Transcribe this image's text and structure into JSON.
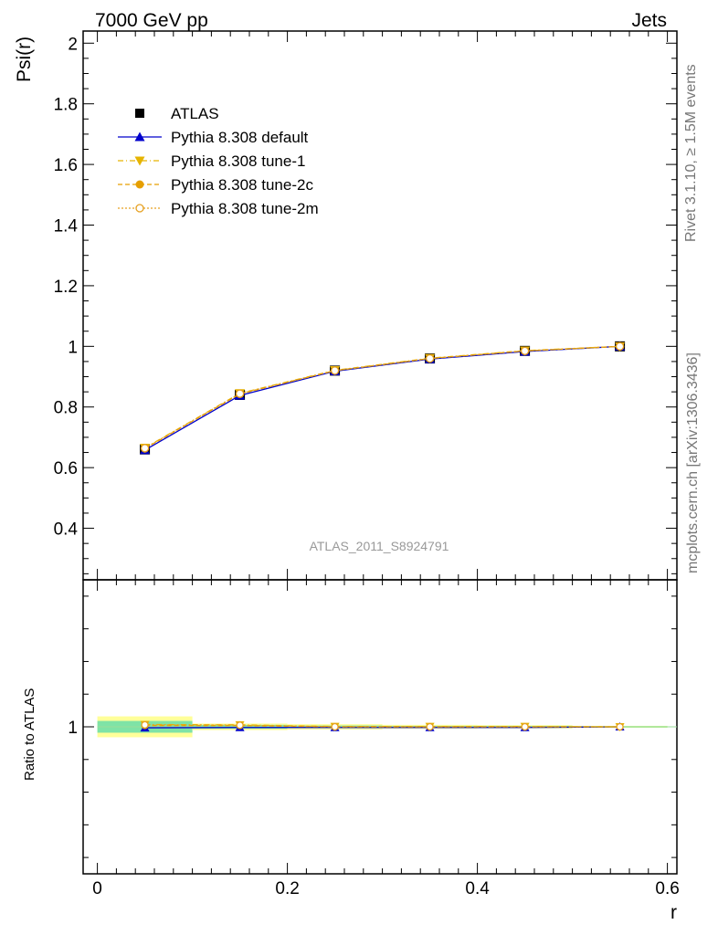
{
  "header": {
    "left": "7000 GeV pp",
    "right": "Jets"
  },
  "side_labels": {
    "rivet": "Rivet 3.1.10, ≥ 1.5M events",
    "mcplots": "mcplots.cern.ch [arXiv:1306.3436]"
  },
  "watermark": "ATLAS_2011_S8924791",
  "colors": {
    "atlas": "#000000",
    "default": "#0000cc",
    "tune1": "#e6b400",
    "tune2c": "#e69f00",
    "tune2m": "#e6a020"
  },
  "chart_data": [
    {
      "type": "line",
      "panel": "main",
      "ylabel": "Psi(r)",
      "xlim": [
        -0.015,
        0.61
      ],
      "ylim": [
        0.23,
        2.04
      ],
      "yticks": [
        "0.4",
        "0.6",
        "0.8",
        "1",
        "1.2",
        "1.4",
        "1.6",
        "1.8",
        "2"
      ],
      "x": [
        0.05,
        0.15,
        0.25,
        0.35,
        0.45,
        0.55
      ],
      "legend": [
        {
          "key": "atlas",
          "label": "ATLAS"
        },
        {
          "key": "default",
          "label": "Pythia 8.308 default"
        },
        {
          "key": "tune1",
          "label": "Pythia 8.308 tune-1"
        },
        {
          "key": "tune2c",
          "label": "Pythia 8.308 tune-2c"
        },
        {
          "key": "tune2m",
          "label": "Pythia 8.308 tune-2m"
        }
      ],
      "series": [
        {
          "key": "atlas",
          "name": "ATLAS",
          "values": [
            0.66,
            0.84,
            0.92,
            0.96,
            0.985,
            1.0
          ]
        },
        {
          "key": "default",
          "name": "Pythia 8.308 default",
          "values": [
            0.658,
            0.838,
            0.918,
            0.958,
            0.983,
            1.0
          ]
        },
        {
          "key": "tune1",
          "name": "Pythia 8.308 tune-1",
          "values": [
            0.665,
            0.845,
            0.921,
            0.961,
            0.986,
            1.0
          ]
        },
        {
          "key": "tune2c",
          "name": "Pythia 8.308 tune-2c",
          "values": [
            0.663,
            0.843,
            0.92,
            0.96,
            0.985,
            1.0
          ]
        },
        {
          "key": "tune2m",
          "name": "Pythia 8.308 tune-2m",
          "values": [
            0.664,
            0.844,
            0.92,
            0.96,
            0.985,
            1.0
          ]
        }
      ]
    },
    {
      "type": "line",
      "panel": "ratio",
      "ylabel": "Ratio to ATLAS",
      "xlabel": "r",
      "xlim": [
        -0.015,
        0.61
      ],
      "ylim": [
        0.55,
        1.45
      ],
      "yticks": [
        "1"
      ],
      "xticks": [
        "0",
        "0.2",
        "0.4",
        "0.6"
      ],
      "x": [
        0.05,
        0.15,
        0.25,
        0.35,
        0.45,
        0.55
      ],
      "series": [
        {
          "key": "default",
          "name": "Pythia 8.308 default",
          "values": [
            0.997,
            0.998,
            0.998,
            0.998,
            0.998,
            1.0
          ]
        },
        {
          "key": "tune1",
          "name": "Pythia 8.308 tune-1",
          "values": [
            1.007,
            1.006,
            1.001,
            1.001,
            1.001,
            1.0
          ]
        },
        {
          "key": "tune2c",
          "name": "Pythia 8.308 tune-2c",
          "values": [
            1.004,
            1.004,
            1.0,
            1.0,
            1.0,
            1.0
          ]
        },
        {
          "key": "tune2m",
          "name": "Pythia 8.308 tune-2m",
          "values": [
            1.006,
            1.005,
            1.0,
            1.0,
            1.0,
            1.0
          ]
        }
      ]
    }
  ]
}
